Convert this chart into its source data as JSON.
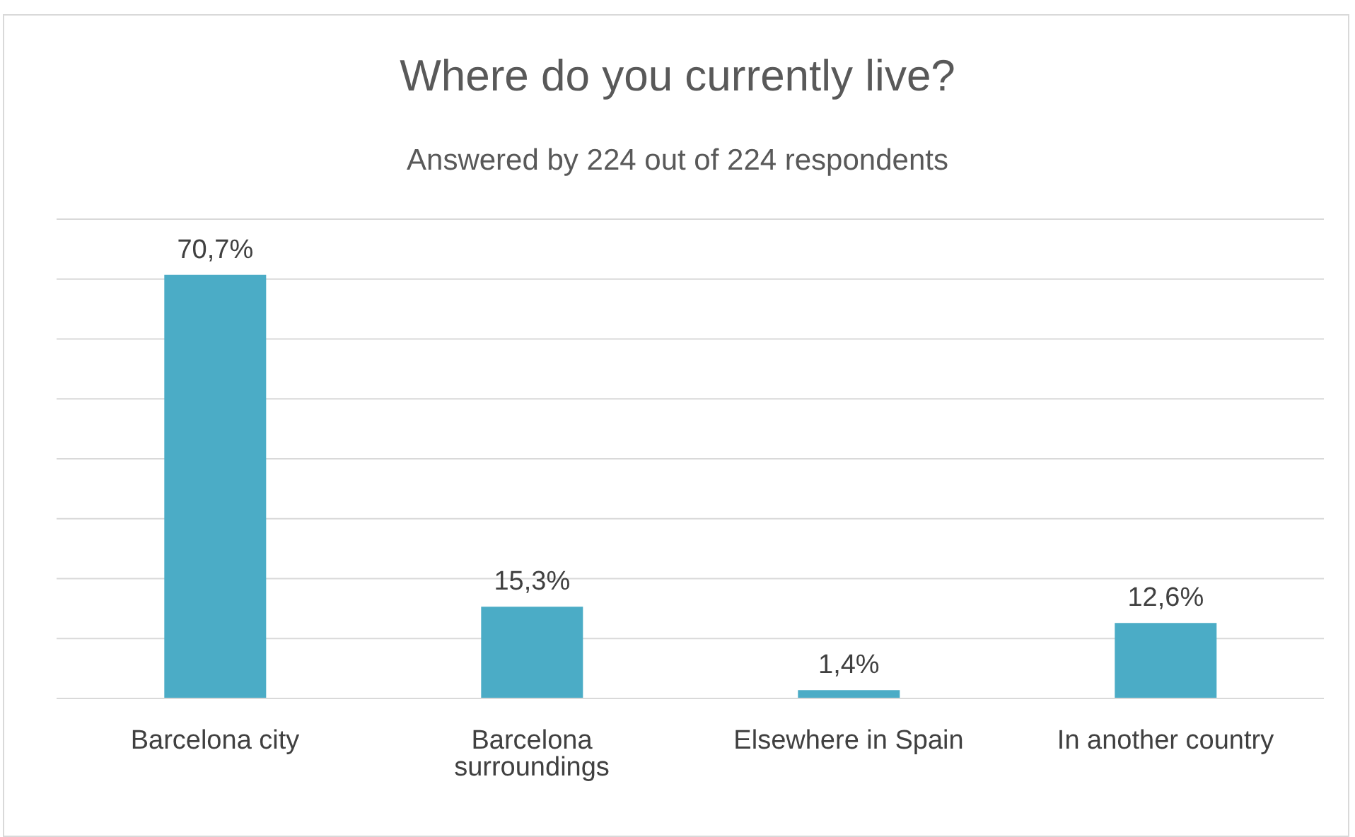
{
  "chart_data": {
    "type": "bar",
    "title": "Where do you currently live?",
    "subtitle": "Answered by 224 out of 224 respondents",
    "categories": [
      "Barcelona city",
      "Barcelona surroundings",
      "Elsewhere in Spain",
      "In another country"
    ],
    "values": [
      70.7,
      15.3,
      1.4,
      12.6
    ],
    "value_labels": [
      "70,7%",
      "15,3%",
      "1,4%",
      "12,6%"
    ],
    "color": "#4bacc6",
    "ylim": [
      0,
      80
    ],
    "yticks": [
      {
        "value": 0,
        "label": null
      },
      {
        "value": 10,
        "label": null
      },
      {
        "value": 20,
        "label": null
      },
      {
        "value": 30,
        "label": null
      },
      {
        "value": 40,
        "label": null
      },
      {
        "value": 50,
        "label": null
      },
      {
        "value": 60,
        "label": null
      },
      {
        "value": 70,
        "label": null
      },
      {
        "value": 80,
        "label": null
      }
    ],
    "grid": "y",
    "legend": false,
    "tick_labels": "x"
  }
}
